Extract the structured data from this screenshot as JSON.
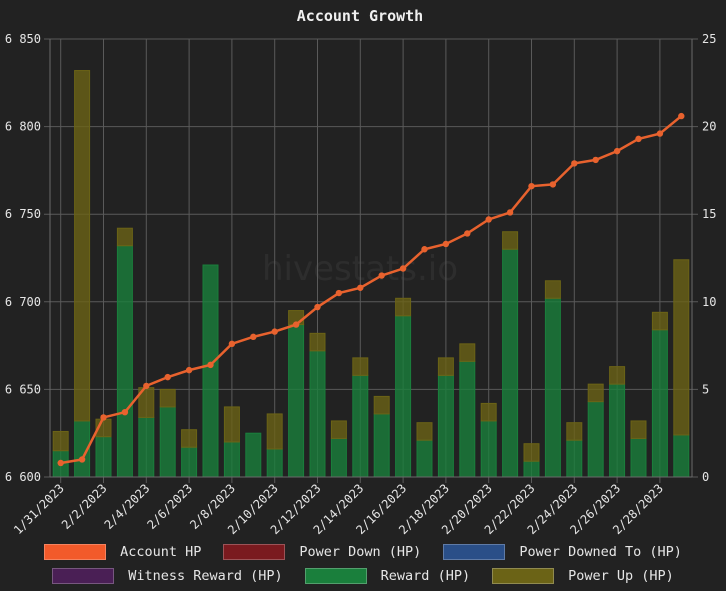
{
  "chart_data": {
    "type": "bar",
    "title": "Account Growth",
    "watermark": "hivestats.io",
    "stacked": true,
    "categories": [
      "1/31/2023",
      "2/1/2023",
      "2/2/2023",
      "2/3/2023",
      "2/4/2023",
      "2/5/2023",
      "2/6/2023",
      "2/7/2023",
      "2/8/2023",
      "2/9/2023",
      "2/10/2023",
      "2/11/2023",
      "2/12/2023",
      "2/13/2023",
      "2/14/2023",
      "2/15/2023",
      "2/16/2023",
      "2/17/2023",
      "2/18/2023",
      "2/19/2023",
      "2/20/2023",
      "2/21/2023",
      "2/22/2023",
      "2/23/2023",
      "2/24/2023",
      "2/25/2023",
      "2/26/2023",
      "2/27/2023",
      "2/28/2023",
      "3/1/2023"
    ],
    "x_tick_labels": [
      "1/31/2023",
      "2/2/2023",
      "2/4/2023",
      "2/6/2023",
      "2/8/2023",
      "2/10/2023",
      "2/12/2023",
      "2/14/2023",
      "2/16/2023",
      "2/18/2023",
      "2/20/2023",
      "2/22/2023",
      "2/24/2023",
      "2/26/2023",
      "2/28/2023"
    ],
    "y_left": {
      "ylim": [
        6600,
        6850
      ],
      "ticks": [
        "6 600",
        "6 650",
        "6 700",
        "6 750",
        "6 800",
        "6 850"
      ],
      "tick_values": [
        6600,
        6650,
        6700,
        6750,
        6800,
        6850
      ]
    },
    "y_right": {
      "ylim": [
        0,
        25
      ],
      "ticks": [
        "0",
        "5",
        "10",
        "15",
        "20",
        "25"
      ],
      "tick_values": [
        0,
        5,
        10,
        15,
        20,
        25
      ]
    },
    "grid": true,
    "legend_position": "bottom",
    "series": [
      {
        "name": "Account HP",
        "type": "line",
        "axis": "left",
        "color": "#e8622e",
        "swatch": "#f25a2a",
        "values": [
          6608,
          6610,
          6634,
          6637,
          6652,
          6657,
          6661,
          6664,
          6676,
          6680,
          6683,
          6687,
          6697,
          6705,
          6708,
          6715,
          6719,
          6730,
          6733,
          6739,
          6747,
          6751,
          6766,
          6767,
          6779,
          6781,
          6786,
          6793,
          6796,
          6806
        ]
      },
      {
        "name": "Power Down (HP)",
        "type": "bar",
        "axis": "right",
        "color": "#7a1a1f",
        "values": [
          0,
          0,
          0,
          0,
          0,
          0,
          0,
          0,
          0,
          0,
          0,
          0,
          0,
          0,
          0,
          0,
          0,
          0,
          0,
          0,
          0,
          0,
          0,
          0,
          0,
          0,
          0,
          0,
          0,
          0
        ]
      },
      {
        "name": "Power Downed To (HP)",
        "type": "bar",
        "axis": "right",
        "color": "#2a4f88",
        "values": [
          0,
          0,
          0,
          0,
          0,
          0,
          0,
          0,
          0,
          0,
          0,
          0,
          0,
          0,
          0,
          0,
          0,
          0,
          0,
          0,
          0,
          0,
          0,
          0,
          0,
          0,
          0,
          0,
          0,
          0
        ]
      },
      {
        "name": "Witness Reward (HP)",
        "type": "bar",
        "axis": "right",
        "color": "#4a1f55",
        "values": [
          0,
          0,
          0,
          0,
          0,
          0,
          0,
          0,
          0,
          0,
          0,
          0,
          0,
          0,
          0,
          0,
          0,
          0,
          0,
          0,
          0,
          0,
          0,
          0,
          0,
          0,
          0,
          0,
          0,
          0
        ]
      },
      {
        "name": "Reward (HP)",
        "type": "bar",
        "axis": "right",
        "color": "#1a7f3c",
        "values": [
          1.5,
          3.2,
          2.3,
          13.2,
          3.4,
          4.0,
          1.7,
          12.1,
          2.0,
          2.5,
          1.6,
          8.7,
          7.2,
          2.2,
          5.8,
          3.6,
          9.2,
          2.1,
          5.8,
          6.6,
          3.2,
          13.0,
          0.9,
          10.2,
          2.1,
          4.3,
          5.3,
          2.2,
          8.4,
          2.4
        ]
      },
      {
        "name": "Power Up (HP)",
        "type": "bar",
        "axis": "right",
        "color": "#6b6316",
        "values": [
          1.1,
          20.0,
          1.0,
          1.0,
          1.7,
          1.0,
          1.0,
          0.0,
          2.0,
          0.0,
          2.0,
          0.8,
          1.0,
          1.0,
          1.0,
          1.0,
          1.0,
          1.0,
          1.0,
          1.0,
          1.0,
          1.0,
          1.0,
          1.0,
          1.0,
          1.0,
          1.0,
          1.0,
          1.0,
          10.0
        ]
      }
    ]
  }
}
